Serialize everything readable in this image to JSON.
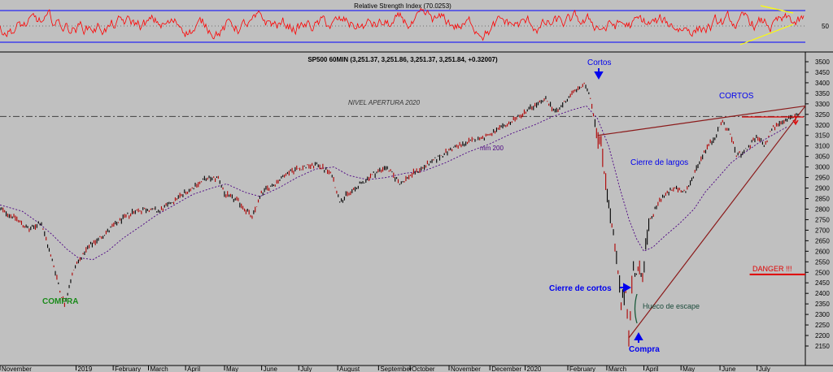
{
  "rsi_panel": {
    "title": "Relative Strength Index (70.0253)",
    "axis_label": "50",
    "levels": [
      70,
      30
    ],
    "channel_color": "#ffff00"
  },
  "price_panel": {
    "title": "SP500 60MIN (3,251.37, 3,251.86, 3,251.37, 3,251.84, +0.32007)",
    "reference_line_label": "NIVEL APERTURA 2020",
    "reference_level": 3240,
    "ma_label": "mm 200",
    "danger_level": 2490
  },
  "annotations": {
    "compra_left": "COMPRA",
    "cortos_top": "Cortos",
    "cortos_right": "CORTOS",
    "cierre_largos": "Cierre de largos",
    "cierre_cortos": "Cierre de cortos",
    "hueco": "Hueco de escape",
    "compra_bottom": "Compra",
    "danger": "DANGER !!!"
  },
  "colors": {
    "background": "#c0c0c0",
    "rsi_line": "#ff0000",
    "rsi_levels": "#0000ff",
    "ma_line": "#4b0082",
    "trendline": "#8b1a1a",
    "danger": "#e00000",
    "annotation_blue": "#0000ee",
    "compra_green": "#1a8a1a"
  },
  "chart_data": {
    "type": "line",
    "title": "SP500 60MIN (3,251.37, 3,251.86, 3,251.37, 3,251.84, +0.32007)",
    "ylim": [
      2125,
      3525
    ],
    "y_ticks": [
      3500,
      3450,
      3400,
      3350,
      3300,
      3250,
      3200,
      3150,
      3100,
      3050,
      3000,
      2950,
      2900,
      2850,
      2800,
      2750,
      2700,
      2650,
      2600,
      2550,
      2500,
      2450,
      2400,
      2350,
      2300,
      2250,
      2200,
      2150
    ],
    "x_ticks": [
      {
        "label": "November",
        "x": 0
      },
      {
        "label": "2019",
        "x": 2.05
      },
      {
        "label": "February",
        "x": 3.05
      },
      {
        "label": "March",
        "x": 4
      },
      {
        "label": "April",
        "x": 5
      },
      {
        "label": "May",
        "x": 6.05
      },
      {
        "label": "June",
        "x": 7.05
      },
      {
        "label": "July",
        "x": 8.05
      },
      {
        "label": "August",
        "x": 9.1
      },
      {
        "label": "September",
        "x": 10.2
      },
      {
        "label": "October",
        "x": 11.05
      },
      {
        "label": "November",
        "x": 12.1
      },
      {
        "label": "December",
        "x": 13.2
      },
      {
        "label": "2020",
        "x": 14.15
      },
      {
        "label": "February",
        "x": 15.3
      },
      {
        "label": "March",
        "x": 16.35
      },
      {
        "label": "April",
        "x": 17.35
      },
      {
        "label": "May",
        "x": 18.35
      },
      {
        "label": "June",
        "x": 19.4
      },
      {
        "label": "July",
        "x": 20.4
      }
    ],
    "xlim": [
      0,
      21.7
    ],
    "price_series": {
      "name": "SP500",
      "points": [
        [
          0,
          2800
        ],
        [
          0.4,
          2760
        ],
        [
          0.8,
          2700
        ],
        [
          1.1,
          2740
        ],
        [
          1.3,
          2620
        ],
        [
          1.5,
          2500
        ],
        [
          1.65,
          2390
        ],
        [
          1.75,
          2350
        ],
        [
          1.9,
          2460
        ],
        [
          2.05,
          2540
        ],
        [
          2.4,
          2620
        ],
        [
          2.8,
          2680
        ],
        [
          3.2,
          2740
        ],
        [
          3.6,
          2790
        ],
        [
          4.0,
          2800
        ],
        [
          4.3,
          2790
        ],
        [
          4.6,
          2830
        ],
        [
          5.0,
          2880
        ],
        [
          5.5,
          2940
        ],
        [
          5.9,
          2950
        ],
        [
          6.05,
          2870
        ],
        [
          6.4,
          2840
        ],
        [
          6.8,
          2760
        ],
        [
          7.05,
          2880
        ],
        [
          7.4,
          2920
        ],
        [
          7.8,
          2980
        ],
        [
          8.2,
          3000
        ],
        [
          8.6,
          3010
        ],
        [
          8.95,
          2960
        ],
        [
          9.15,
          2840
        ],
        [
          9.6,
          2900
        ],
        [
          10.0,
          2960
        ],
        [
          10.4,
          3000
        ],
        [
          10.8,
          2920
        ],
        [
          11.05,
          2960
        ],
        [
          11.6,
          3020
        ],
        [
          12.2,
          3090
        ],
        [
          12.8,
          3130
        ],
        [
          13.3,
          3160
        ],
        [
          13.9,
          3230
        ],
        [
          14.3,
          3280
        ],
        [
          14.7,
          3320
        ],
        [
          15.0,
          3260
        ],
        [
          15.4,
          3350
        ],
        [
          15.75,
          3390
        ],
        [
          15.9,
          3340
        ],
        [
          16.05,
          3200
        ],
        [
          16.2,
          3100
        ],
        [
          16.35,
          2900
        ],
        [
          16.5,
          2700
        ],
        [
          16.65,
          2500
        ],
        [
          16.75,
          2320
        ],
        [
          16.85,
          2450
        ],
        [
          16.95,
          2190
        ],
        [
          17.05,
          2520
        ],
        [
          17.3,
          2480
        ],
        [
          17.5,
          2740
        ],
        [
          17.8,
          2850
        ],
        [
          18.2,
          2900
        ],
        [
          18.5,
          2880
        ],
        [
          18.7,
          2970
        ],
        [
          19.0,
          3080
        ],
        [
          19.3,
          3150
        ],
        [
          19.45,
          3220
        ],
        [
          19.7,
          3150
        ],
        [
          19.85,
          3050
        ],
        [
          20.1,
          3080
        ],
        [
          20.4,
          3140
        ],
        [
          20.6,
          3100
        ],
        [
          20.8,
          3180
        ],
        [
          21.0,
          3210
        ],
        [
          21.3,
          3230
        ],
        [
          21.5,
          3252
        ]
      ]
    },
    "ma200_series": {
      "name": "mm 200",
      "points": [
        [
          0,
          2820
        ],
        [
          0.6,
          2790
        ],
        [
          1.0,
          2740
        ],
        [
          1.4,
          2680
        ],
        [
          1.8,
          2610
        ],
        [
          2.1,
          2570
        ],
        [
          2.5,
          2560
        ],
        [
          2.9,
          2600
        ],
        [
          3.3,
          2660
        ],
        [
          3.8,
          2720
        ],
        [
          4.2,
          2770
        ],
        [
          4.7,
          2820
        ],
        [
          5.2,
          2870
        ],
        [
          5.7,
          2900
        ],
        [
          6.1,
          2920
        ],
        [
          6.6,
          2880
        ],
        [
          7.0,
          2860
        ],
        [
          7.5,
          2900
        ],
        [
          8.0,
          2950
        ],
        [
          8.5,
          2990
        ],
        [
          9.0,
          3000
        ],
        [
          9.4,
          2960
        ],
        [
          9.9,
          2940
        ],
        [
          10.4,
          2950
        ],
        [
          10.9,
          2970
        ],
        [
          11.4,
          2980
        ],
        [
          12.0,
          3020
        ],
        [
          12.6,
          3070
        ],
        [
          13.2,
          3110
        ],
        [
          13.8,
          3160
        ],
        [
          14.4,
          3200
        ],
        [
          14.9,
          3240
        ],
        [
          15.4,
          3270
        ],
        [
          15.8,
          3290
        ],
        [
          16.1,
          3230
        ],
        [
          16.4,
          3100
        ],
        [
          16.7,
          2900
        ],
        [
          16.95,
          2750
        ],
        [
          17.15,
          2660
        ],
        [
          17.35,
          2600
        ],
        [
          17.6,
          2620
        ],
        [
          17.9,
          2670
        ],
        [
          18.3,
          2730
        ],
        [
          18.7,
          2800
        ],
        [
          19.0,
          2880
        ],
        [
          19.4,
          2960
        ],
        [
          19.7,
          3020
        ],
        [
          20.0,
          3060
        ],
        [
          20.4,
          3110
        ],
        [
          20.8,
          3150
        ],
        [
          21.2,
          3190
        ]
      ]
    },
    "rsi_series": {
      "name": "Relative Strength Index",
      "ylim": [
        0,
        100
      ],
      "levels": [
        70,
        30
      ],
      "last": 70.0253
    },
    "lines": [
      {
        "name": "nivel-apertura-2020",
        "y": 3240,
        "style": "dash-dot"
      },
      {
        "name": "upper-trendline",
        "from": [
          16.1,
          3150
        ],
        "to": [
          21.7,
          3290
        ]
      },
      {
        "name": "lower-trendline",
        "from": [
          16.95,
          2190
        ],
        "to": [
          21.7,
          3290
        ]
      },
      {
        "name": "danger-line",
        "from": [
          20.2,
          2490
        ],
        "to": [
          21.7,
          2490
        ]
      }
    ],
    "grid": false,
    "legend": "none"
  }
}
